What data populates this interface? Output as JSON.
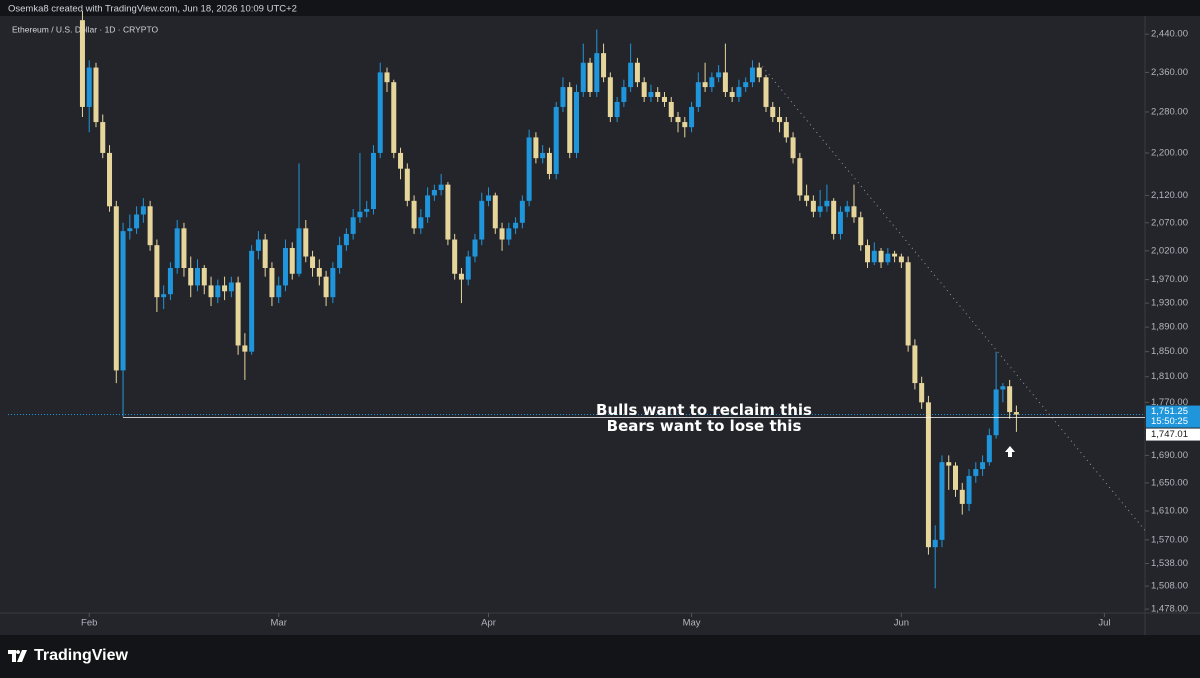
{
  "header": {
    "credit": "Osemka8 created with TradingView.com, Jun 18, 2026 10:09 UTC+2",
    "brand": "TradingView"
  },
  "chart_data": {
    "type": "candlestick",
    "title": "Ethereum / U.S. Dollar · 1D · CRYPTO",
    "up_color": "#1f96dc",
    "down_color": "#e6d69b",
    "log_scale": true,
    "ylim": [
      1473,
      2479
    ],
    "yticks": [
      {
        "value": 2440,
        "label": "2,440.00"
      },
      {
        "value": 2360,
        "label": "2,360.00"
      },
      {
        "value": 2280,
        "label": "2,280.00"
      },
      {
        "value": 2200,
        "label": "2,200.00"
      },
      {
        "value": 2120,
        "label": "2,120.00"
      },
      {
        "value": 2070,
        "label": "2,070.00"
      },
      {
        "value": 2020,
        "label": "2,020.00"
      },
      {
        "value": 1970,
        "label": "1,970.00"
      },
      {
        "value": 1930,
        "label": "1,930.00"
      },
      {
        "value": 1890,
        "label": "1,890.00"
      },
      {
        "value": 1850,
        "label": "1,850.00"
      },
      {
        "value": 1810,
        "label": "1,810.00"
      },
      {
        "value": 1770,
        "label": "1,770.00"
      },
      {
        "value": 1690,
        "label": "1,690.00"
      },
      {
        "value": 1650,
        "label": "1,650.00"
      },
      {
        "value": 1610,
        "label": "1,610.00"
      },
      {
        "value": 1570,
        "label": "1,570.00"
      },
      {
        "value": 1538,
        "label": "1,538.00"
      },
      {
        "value": 1508,
        "label": "1,508.00"
      },
      {
        "value": 1478,
        "label": "1,478.00"
      }
    ],
    "xlim": [
      -11,
      157
    ],
    "xticks": [
      {
        "value": 1,
        "label": "Feb"
      },
      {
        "value": 29,
        "label": "Mar"
      },
      {
        "value": 60,
        "label": "Apr"
      },
      {
        "value": 90,
        "label": "May"
      },
      {
        "value": 121,
        "label": "Jun"
      },
      {
        "value": 151,
        "label": "Jul"
      }
    ],
    "candles": [
      [
        2470,
        2490,
        2270,
        2290
      ],
      [
        2290,
        2385,
        2240,
        2370
      ],
      [
        2370,
        2380,
        2250,
        2260
      ],
      [
        2260,
        2275,
        2190,
        2200
      ],
      [
        2200,
        2215,
        2090,
        2100
      ],
      [
        2100,
        2110,
        1800,
        1820
      ],
      [
        1820,
        2070,
        1748,
        2055
      ],
      [
        2055,
        2085,
        2040,
        2060
      ],
      [
        2060,
        2100,
        2050,
        2085
      ],
      [
        2085,
        2115,
        2070,
        2100
      ],
      [
        2100,
        2110,
        2020,
        2030
      ],
      [
        2030,
        2040,
        1915,
        1940
      ],
      [
        1940,
        1960,
        1920,
        1945
      ],
      [
        1945,
        2000,
        1935,
        1990
      ],
      [
        1990,
        2075,
        1980,
        2060
      ],
      [
        2060,
        2070,
        1975,
        1990
      ],
      [
        1990,
        2010,
        1940,
        1960
      ],
      [
        1960,
        2005,
        1950,
        1990
      ],
      [
        1990,
        1995,
        1945,
        1960
      ],
      [
        1960,
        1975,
        1925,
        1940
      ],
      [
        1940,
        1970,
        1930,
        1960
      ],
      [
        1960,
        1975,
        1935,
        1950
      ],
      [
        1950,
        1975,
        1940,
        1965
      ],
      [
        1965,
        1975,
        1845,
        1860
      ],
      [
        1860,
        1880,
        1805,
        1850
      ],
      [
        1850,
        2030,
        1845,
        2020
      ],
      [
        2020,
        2055,
        2005,
        2040
      ],
      [
        2040,
        2050,
        1975,
        1990
      ],
      [
        1990,
        2000,
        1925,
        1940
      ],
      [
        1940,
        1975,
        1930,
        1960
      ],
      [
        1960,
        2040,
        1950,
        2025
      ],
      [
        2025,
        2035,
        1970,
        1980
      ],
      [
        1980,
        2180,
        1975,
        2060
      ],
      [
        2060,
        2075,
        2000,
        2010
      ],
      [
        2010,
        2020,
        1975,
        1990
      ],
      [
        1990,
        2005,
        1960,
        1975
      ],
      [
        1975,
        1985,
        1925,
        1940
      ],
      [
        1940,
        2000,
        1930,
        1990
      ],
      [
        1990,
        2045,
        1980,
        2030
      ],
      [
        2030,
        2060,
        2020,
        2050
      ],
      [
        2050,
        2095,
        2040,
        2080
      ],
      [
        2080,
        2200,
        2070,
        2090
      ],
      [
        2090,
        2110,
        2080,
        2095
      ],
      [
        2095,
        2215,
        2085,
        2200
      ],
      [
        2200,
        2380,
        2190,
        2360
      ],
      [
        2360,
        2370,
        2320,
        2340
      ],
      [
        2340,
        2345,
        2190,
        2200
      ],
      [
        2200,
        2210,
        2150,
        2170
      ],
      [
        2170,
        2180,
        2100,
        2110
      ],
      [
        2110,
        2120,
        2050,
        2060
      ],
      [
        2060,
        2095,
        2050,
        2080
      ],
      [
        2080,
        2135,
        2070,
        2120
      ],
      [
        2120,
        2140,
        2110,
        2130
      ],
      [
        2130,
        2160,
        2120,
        2140
      ],
      [
        2140,
        2145,
        2030,
        2040
      ],
      [
        2040,
        2050,
        1970,
        1980
      ],
      [
        1980,
        1990,
        1930,
        1970
      ],
      [
        1970,
        2020,
        1960,
        2010
      ],
      [
        2010,
        2050,
        2000,
        2040
      ],
      [
        2040,
        2125,
        2030,
        2110
      ],
      [
        2110,
        2135,
        2100,
        2120
      ],
      [
        2120,
        2125,
        2050,
        2060
      ],
      [
        2060,
        2070,
        2020,
        2040
      ],
      [
        2040,
        2070,
        2030,
        2060
      ],
      [
        2060,
        2080,
        2050,
        2070
      ],
      [
        2070,
        2120,
        2060,
        2110
      ],
      [
        2110,
        2245,
        2100,
        2230
      ],
      [
        2230,
        2240,
        2180,
        2190
      ],
      [
        2190,
        2215,
        2180,
        2200
      ],
      [
        2200,
        2210,
        2150,
        2160
      ],
      [
        2160,
        2300,
        2150,
        2290
      ],
      [
        2290,
        2350,
        2280,
        2330
      ],
      [
        2330,
        2340,
        2190,
        2200
      ],
      [
        2200,
        2335,
        2190,
        2320
      ],
      [
        2320,
        2420,
        2310,
        2380
      ],
      [
        2380,
        2390,
        2310,
        2320
      ],
      [
        2320,
        2450,
        2310,
        2400
      ],
      [
        2400,
        2420,
        2340,
        2350
      ],
      [
        2350,
        2360,
        2260,
        2270
      ],
      [
        2270,
        2310,
        2260,
        2300
      ],
      [
        2300,
        2345,
        2290,
        2330
      ],
      [
        2330,
        2420,
        2320,
        2380
      ],
      [
        2380,
        2390,
        2330,
        2340
      ],
      [
        2340,
        2350,
        2300,
        2310
      ],
      [
        2310,
        2335,
        2300,
        2320
      ],
      [
        2320,
        2330,
        2300,
        2310
      ],
      [
        2310,
        2320,
        2290,
        2300
      ],
      [
        2300,
        2310,
        2260,
        2270
      ],
      [
        2270,
        2280,
        2240,
        2260
      ],
      [
        2260,
        2270,
        2230,
        2250
      ],
      [
        2250,
        2300,
        2240,
        2290
      ],
      [
        2290,
        2360,
        2280,
        2340
      ],
      [
        2340,
        2380,
        2320,
        2330
      ],
      [
        2330,
        2360,
        2320,
        2350
      ],
      [
        2350,
        2375,
        2340,
        2360
      ],
      [
        2360,
        2420,
        2310,
        2320
      ],
      [
        2320,
        2330,
        2300,
        2310
      ],
      [
        2310,
        2345,
        2300,
        2330
      ],
      [
        2330,
        2350,
        2320,
        2340
      ],
      [
        2340,
        2385,
        2330,
        2370
      ],
      [
        2370,
        2380,
        2340,
        2350
      ],
      [
        2350,
        2355,
        2280,
        2290
      ],
      [
        2290,
        2300,
        2260,
        2270
      ],
      [
        2270,
        2290,
        2240,
        2260
      ],
      [
        2260,
        2270,
        2220,
        2230
      ],
      [
        2230,
        2240,
        2180,
        2190
      ],
      [
        2190,
        2200,
        2110,
        2120
      ],
      [
        2120,
        2140,
        2100,
        2110
      ],
      [
        2110,
        2120,
        2080,
        2090
      ],
      [
        2090,
        2130,
        2080,
        2100
      ],
      [
        2100,
        2140,
        2090,
        2110
      ],
      [
        2110,
        2115,
        2040,
        2050
      ],
      [
        2050,
        2100,
        2040,
        2090
      ],
      [
        2090,
        2110,
        2080,
        2100
      ],
      [
        2100,
        2140,
        2070,
        2080
      ],
      [
        2080,
        2090,
        2020,
        2030
      ],
      [
        2030,
        2040,
        1990,
        2000
      ],
      [
        2000,
        2035,
        1995,
        2020
      ],
      [
        2020,
        2025,
        1990,
        2000
      ],
      [
        2000,
        2025,
        1995,
        2015
      ],
      [
        2015,
        2020,
        2000,
        2010
      ],
      [
        2010,
        2015,
        1990,
        2000
      ],
      [
        2000,
        2010,
        1850,
        1860
      ],
      [
        1860,
        1870,
        1790,
        1800
      ],
      [
        1800,
        1810,
        1760,
        1770
      ],
      [
        1770,
        1780,
        1550,
        1560
      ],
      [
        1560,
        1590,
        1505,
        1570
      ],
      [
        1570,
        1690,
        1560,
        1680
      ],
      [
        1680,
        1690,
        1640,
        1675
      ],
      [
        1675,
        1680,
        1630,
        1640
      ],
      [
        1640,
        1650,
        1605,
        1620
      ],
      [
        1620,
        1670,
        1610,
        1660
      ],
      [
        1660,
        1680,
        1650,
        1670
      ],
      [
        1670,
        1690,
        1660,
        1680
      ],
      [
        1680,
        1730,
        1675,
        1720
      ],
      [
        1720,
        1850,
        1715,
        1790
      ],
      [
        1790,
        1800,
        1770,
        1795
      ],
      [
        1795,
        1805,
        1745,
        1755
      ],
      [
        1755,
        1765,
        1725,
        1751.25
      ]
    ],
    "last_price_label": "1,751.25",
    "countdown": "15:50:25",
    "support": {
      "value": 1747.01,
      "label": "1,747.01",
      "from": 6
    },
    "trendline": {
      "from": [
        100,
        2380
      ],
      "to": [
        157,
        1583
      ]
    },
    "annotations": [
      "Bulls want to reclaim this",
      "Bears want to lose this"
    ]
  }
}
